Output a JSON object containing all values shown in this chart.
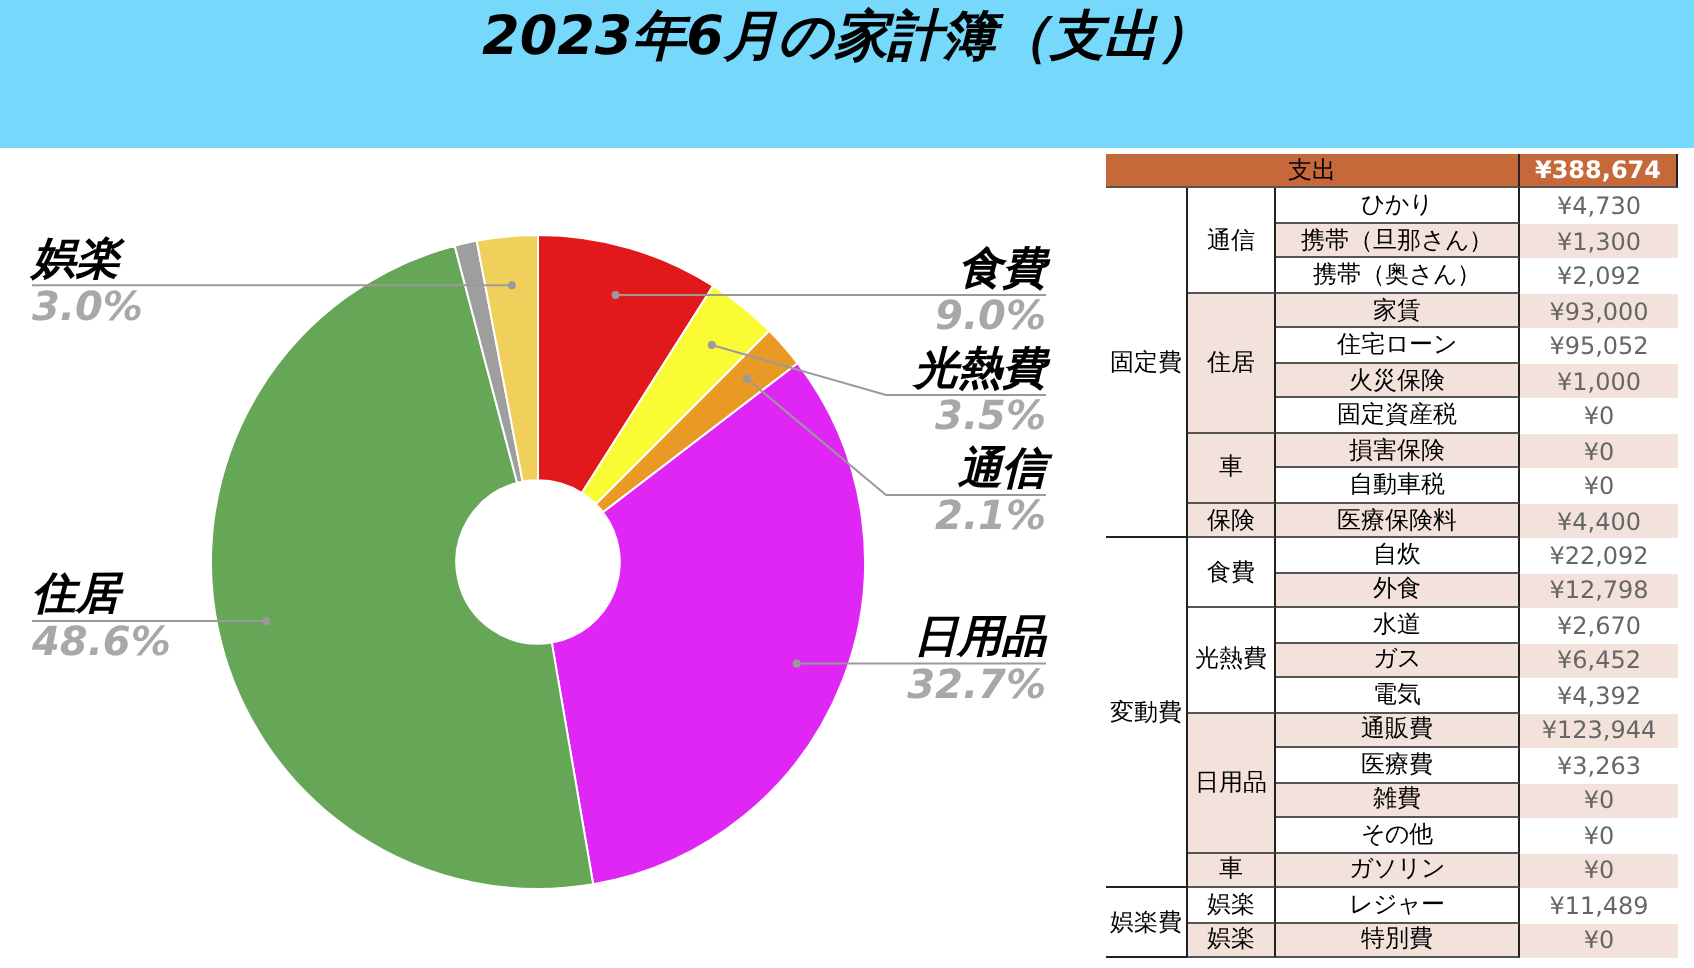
{
  "chart_data": [
    {
      "type": "donut",
      "title": "2023年6月の家計簿（支出）",
      "categories": [
        "食費",
        "光熱費",
        "通信",
        "日用品",
        "住居",
        null,
        "娯楽"
      ],
      "values": [
        9.0,
        3.5,
        2.1,
        32.7,
        48.6,
        1.1,
        3.0
      ],
      "colors": [
        "#e2191b",
        "#fbfb35",
        "#e99a25",
        "#e026f5",
        "#65a657",
        "#9e9e9e",
        "#f1cf5b"
      ],
      "value_labels": [
        "9.0%",
        "3.5%",
        "2.1%",
        "32.7%",
        "48.6%",
        null,
        "3.0%"
      ],
      "legend": false
    },
    {
      "type": "other",
      "annotations": [
        "支出",
        "¥388,674",
        "固定費",
        "通信",
        "ひかり",
        "¥4,730",
        "携帯（旦那さん）",
        "¥1,300",
        "携帯（奥さん）",
        "¥2,092",
        "住居",
        "家賃",
        "¥93,000",
        "住宅ローン",
        "¥95,052",
        "火災保険",
        "¥1,000",
        "固定資産税",
        "¥0",
        "車",
        "損害保険",
        "¥0",
        "自動車税",
        "¥0",
        "保険",
        "医療保険料",
        "¥4,400",
        "変動費",
        "食費",
        "自炊",
        "¥22,092",
        "外食",
        "¥12,798",
        "光熱費",
        "水道",
        "¥2,670",
        "ガス",
        "¥6,452",
        "電気",
        "¥4,392",
        "日用品",
        "通販費",
        "¥123,944",
        "医療費",
        "¥3,263",
        "雑費",
        "¥0",
        "その他",
        "¥0",
        "車",
        "ガソリン",
        "¥0",
        "娯楽費",
        "娯楽",
        "レジャー",
        "¥11,489",
        "娯楽",
        "特別費",
        "¥0"
      ]
    }
  ]
}
